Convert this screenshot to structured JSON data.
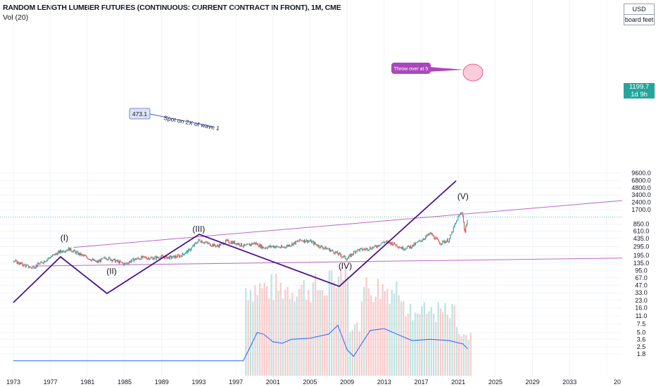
{
  "header": {
    "title": "RANDOM LENGTH LUMBER FUTURES (CONTINUOUS: CURRENT CONTRACT IN FRONT), 1M, CME",
    "volume_label": "Vol (20)"
  },
  "axis_boxes": {
    "currency": "USD",
    "unit": "board feet"
  },
  "last_price": {
    "value": "1199.7",
    "countdown": "1d 9h"
  },
  "chart_data": {
    "type": "candlestick",
    "title": "RANDOM LENGTH LUMBER FUTURES (CONTINUOUS: CURRENT CONTRACT IN FRONT), 1M, CME",
    "y_scale": "log",
    "y_ticks": [
      "9600.0",
      "6800.0",
      "4800.0",
      "3400.0",
      "2400.0",
      "1700.0",
      "1199.7",
      "850.0",
      "610.0",
      "435.0",
      "295.0",
      "195.0",
      "135.0",
      "95.0",
      "67.0",
      "47.0",
      "33.0",
      "23.0",
      "16.0",
      "11.0",
      "7.5",
      "5.0",
      "3.6",
      "2.5",
      "1.8"
    ],
    "x_ticks": [
      "1973",
      "1977",
      "1981",
      "1985",
      "1989",
      "1993",
      "1997",
      "2001",
      "2005",
      "2009",
      "2013",
      "2017",
      "2021",
      "2025",
      "2029",
      "2033",
      "20"
    ],
    "price_path": [
      [
        1973,
        150
      ],
      [
        1974,
        125
      ],
      [
        1975,
        108
      ],
      [
        1976,
        135
      ],
      [
        1977,
        180
      ],
      [
        1978,
        230
      ],
      [
        1979,
        265
      ],
      [
        1980,
        210
      ],
      [
        1981,
        175
      ],
      [
        1982,
        140
      ],
      [
        1983,
        175
      ],
      [
        1984,
        150
      ],
      [
        1985,
        128
      ],
      [
        1986,
        160
      ],
      [
        1987,
        175
      ],
      [
        1988,
        170
      ],
      [
        1989,
        180
      ],
      [
        1990,
        175
      ],
      [
        1991,
        190
      ],
      [
        1992,
        250
      ],
      [
        1993,
        400
      ],
      [
        1994,
        340
      ],
      [
        1995,
        300
      ],
      [
        1996,
        380
      ],
      [
        1997,
        350
      ],
      [
        1998,
        300
      ],
      [
        1999,
        350
      ],
      [
        2000,
        280
      ],
      [
        2001,
        300
      ],
      [
        2002,
        280
      ],
      [
        2003,
        330
      ],
      [
        2004,
        400
      ],
      [
        2005,
        380
      ],
      [
        2006,
        300
      ],
      [
        2007,
        260
      ],
      [
        2008,
        210
      ],
      [
        2009,
        165
      ],
      [
        2010,
        250
      ],
      [
        2011,
        260
      ],
      [
        2012,
        290
      ],
      [
        2013,
        370
      ],
      [
        2014,
        340
      ],
      [
        2015,
        270
      ],
      [
        2016,
        300
      ],
      [
        2017,
        400
      ],
      [
        2018,
        550
      ],
      [
        2019,
        350
      ],
      [
        2020,
        400
      ],
      [
        2020.6,
        800
      ],
      [
        2021,
        1200
      ],
      [
        2021.4,
        1600
      ],
      [
        2021.7,
        550
      ],
      [
        2022,
        1199.7
      ]
    ],
    "volume_ma": [
      [
        1973,
        1.3
      ],
      [
        1997.8,
        1.3
      ],
      [
        1998.5,
        2.4
      ],
      [
        1999.3,
        5.0
      ],
      [
        2000,
        4.6
      ],
      [
        2001,
        3.2
      ],
      [
        2002,
        3.0
      ],
      [
        2003,
        3.6
      ],
      [
        2005,
        3.8
      ],
      [
        2007,
        4.6
      ],
      [
        2008,
        7.0
      ],
      [
        2009,
        2.2
      ],
      [
        2009.7,
        1.6
      ],
      [
        2010.5,
        2.8
      ],
      [
        2011.5,
        5.5
      ],
      [
        2013,
        6.0
      ],
      [
        2014.5,
        4.5
      ],
      [
        2016,
        3.4
      ],
      [
        2018,
        3.6
      ],
      [
        2020,
        3.4
      ],
      [
        2021.5,
        2.9
      ],
      [
        2022,
        2.3
      ]
    ],
    "series": [
      {
        "name": "",
        "type": "line",
        "color": "#ba68c8"
      },
      {
        "name": "",
        "type": "line",
        "color": "#ba68c8"
      },
      {
        "name": "",
        "type": "line",
        "color": "#4a148c"
      }
    ],
    "wave_labels": [
      {
        "text": "(I)",
        "year": 1978.5,
        "price": 390
      },
      {
        "text": "(II)",
        "year": 1983.6,
        "price": 80
      },
      {
        "text": "(III)",
        "year": 1993.0,
        "price": 590
      },
      {
        "text": "(IV)",
        "year": 2008.8,
        "price": 103
      },
      {
        "text": "(V)",
        "year": 2021.5,
        "price": 2800
      }
    ],
    "annotations": [
      {
        "text": "Spot on 2X of wave 1"
      },
      {
        "text": "473.1"
      },
      {
        "text": "Throw over at 5"
      }
    ],
    "colors": {
      "up": "#26a69a",
      "down": "#ef5350",
      "channel": "#ba68c8",
      "wave_path": "#4a148c",
      "vol_ma": "#2962ff",
      "grid": "#f0f3fa"
    }
  }
}
